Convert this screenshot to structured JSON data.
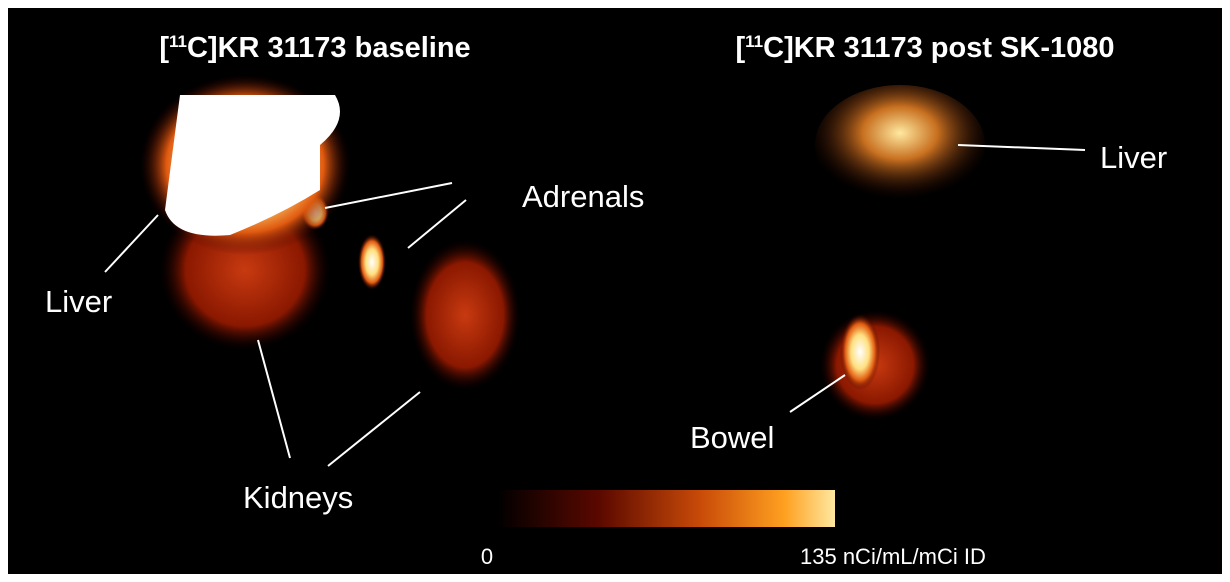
{
  "panels": [
    {
      "title": {
        "prefix": "[",
        "sup": "11",
        "rest": "C]KR 31173 baseline"
      },
      "labels": [
        "Liver",
        "Adrenals",
        "Kidneys"
      ]
    },
    {
      "title": {
        "prefix": "[",
        "sup": "11",
        "rest": "C]KR 31173 post SK-1080"
      },
      "labels": [
        "Liver",
        "Bowel"
      ]
    }
  ],
  "colorbar": {
    "min_label": "0",
    "max_label": "135 nCi/mL/mCi ID"
  }
}
